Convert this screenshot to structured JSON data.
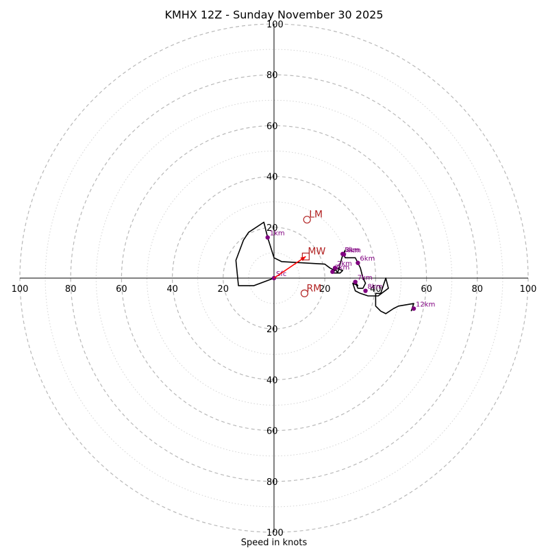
{
  "chart_data": {
    "type": "hodograph",
    "title": "KMHX 12Z - Sunday November 30 2025",
    "xlabel": "Speed in knots",
    "units": "knots",
    "range_max": 100,
    "major_ring_step": 20,
    "minor_ring_step": 10,
    "x_tick_labels": [
      "100",
      "80",
      "60",
      "40",
      "20",
      "20",
      "40",
      "60",
      "80",
      "100"
    ],
    "x_tick_values": [
      -100,
      -80,
      -60,
      -40,
      -20,
      20,
      40,
      60,
      80,
      100
    ],
    "y_tick_labels": [
      "100",
      "80",
      "60",
      "40",
      "20",
      "20",
      "40",
      "60",
      "80",
      "100"
    ],
    "y_tick_values": [
      100,
      80,
      60,
      40,
      20,
      -20,
      -40,
      -60,
      -80,
      -100
    ],
    "trace": [
      [
        0,
        0
      ],
      [
        -8,
        -3
      ],
      [
        -14,
        -3
      ],
      [
        -15,
        7
      ],
      [
        -12,
        15
      ],
      [
        -10,
        18
      ],
      [
        -4,
        22
      ],
      [
        -2.5,
        16
      ],
      [
        0,
        8
      ],
      [
        3,
        6.5
      ],
      [
        20,
        5.5
      ],
      [
        22,
        4
      ],
      [
        24,
        3
      ],
      [
        23,
        2.5
      ],
      [
        24,
        4
      ],
      [
        27,
        3
      ],
      [
        26,
        2
      ],
      [
        23,
        2
      ],
      [
        24,
        4
      ],
      [
        25,
        2
      ],
      [
        27,
        9
      ],
      [
        28,
        11
      ],
      [
        27.5,
        9.3
      ],
      [
        28,
        8
      ],
      [
        30,
        8
      ],
      [
        32,
        8
      ],
      [
        33,
        6
      ],
      [
        34,
        4
      ],
      [
        35,
        0
      ],
      [
        36,
        -2
      ],
      [
        35,
        -4
      ],
      [
        33,
        -4
      ],
      [
        32,
        -1.5
      ],
      [
        33,
        -3
      ],
      [
        31,
        -2
      ],
      [
        32,
        -5
      ],
      [
        34,
        -6
      ],
      [
        37,
        -7
      ],
      [
        40,
        -7
      ],
      [
        41,
        -7
      ],
      [
        45,
        -4
      ],
      [
        44,
        0
      ],
      [
        42,
        -6
      ],
      [
        40,
        -6
      ],
      [
        40,
        -11
      ],
      [
        42,
        -13
      ],
      [
        44,
        -14
      ],
      [
        47,
        -12
      ],
      [
        49,
        -11
      ],
      [
        55,
        -10
      ],
      [
        54,
        -13
      ]
    ],
    "heights": [
      {
        "label": "Sfc",
        "u": 0,
        "v": 0
      },
      {
        "label": "1km",
        "u": -2.5,
        "v": 16
      },
      {
        "label": "3km",
        "u": 23,
        "v": 2.5
      },
      {
        "label": "2km",
        "u": 24,
        "v": 4
      },
      {
        "label": "4km",
        "u": 27.5,
        "v": 9.3
      },
      {
        "label": "5km",
        "u": 27,
        "v": 9.5
      },
      {
        "label": "6km",
        "u": 33,
        "v": 6
      },
      {
        "label": "7km",
        "u": 32,
        "v": -1.5
      },
      {
        "label": "8km",
        "u": 36,
        "v": -5
      },
      {
        "label": "12km",
        "u": 55,
        "v": -12
      }
    ],
    "markers": {
      "mean_wind": {
        "label": "MW",
        "u": 12.5,
        "v": 8.5
      },
      "left_mover": {
        "label": "LM",
        "u": 13,
        "v": 23
      },
      "right_mover": {
        "label": "RM",
        "u": 12,
        "v": -6
      }
    },
    "colors": {
      "trace": "#000000",
      "height_points": "#800080",
      "markers": "#b22222",
      "mean_wind_arrow": "#ff0000",
      "rings": "#b0b0b0"
    }
  }
}
